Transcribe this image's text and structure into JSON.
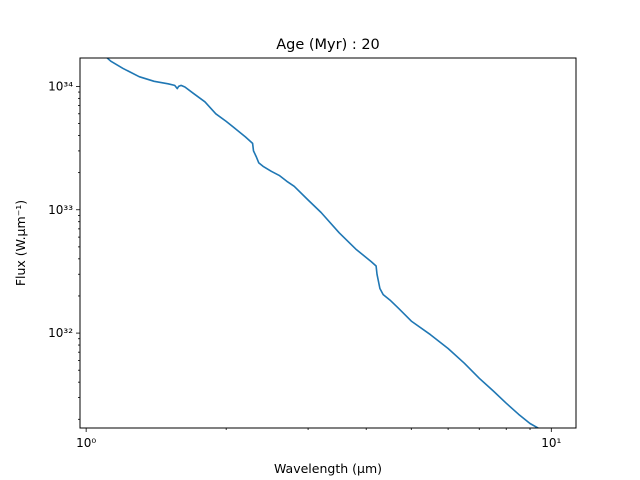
{
  "chart_data": {
    "type": "line",
    "title": "Age (Myr) : 20",
    "xlabel": "Wavelength (μm)",
    "ylabel": "Flux (W.μm⁻¹)",
    "xscale": "log",
    "yscale": "log",
    "xlim": [
      0.97,
      11.3
    ],
    "ylim": [
      1.7e+31,
      1.7e+34
    ],
    "x_ticks": [
      {
        "value": 1,
        "label": "10⁰"
      },
      {
        "value": 10,
        "label": "10¹"
      }
    ],
    "y_ticks": [
      {
        "value": 1e+32,
        "label": "10³²"
      },
      {
        "value": 1e+33,
        "label": "10³³"
      },
      {
        "value": 1e+34,
        "label": "10³⁴"
      }
    ],
    "grid": false,
    "line_color": "#1f77b4",
    "series": [
      {
        "x": [
          1.1,
          1.13,
          1.2,
          1.3,
          1.4,
          1.5,
          1.55,
          1.57,
          1.58,
          1.6,
          1.63,
          1.7,
          1.8,
          1.9,
          2.0,
          2.1,
          2.2,
          2.28,
          2.29,
          2.32,
          2.35,
          2.4,
          2.5,
          2.6,
          2.7,
          2.8,
          3.0,
          3.2,
          3.5,
          3.8,
          4.1,
          4.2,
          4.22,
          4.28,
          4.35,
          4.5,
          4.7,
          5.0,
          5.5,
          6.0,
          6.5,
          7.0,
          7.5,
          8.0,
          8.5,
          9.0,
          9.5
        ],
        "y": [
          1.75e+34,
          1.6e+34,
          1.4e+34,
          1.2e+34,
          1.1e+34,
          1.05e+34,
          1.02e+34,
          9.6e+33,
          1e+34,
          1.02e+34,
          9.9e+33,
          8.8e+33,
          7.5e+33,
          6e+33,
          5.2e+33,
          4.5e+33,
          3.9e+33,
          3.45e+33,
          3e+33,
          2.7e+33,
          2.4e+33,
          2.25e+33,
          2.05e+33,
          1.9e+33,
          1.7e+33,
          1.55e+33,
          1.2e+33,
          9.5e+32,
          6.5e+32,
          4.8e+32,
          3.8e+32,
          3.5e+32,
          3e+32,
          2.3e+32,
          2.05e+32,
          1.85e+32,
          1.58e+32,
          1.25e+32,
          9.7e+31,
          7.5e+31,
          5.7e+31,
          4.3e+31,
          3.4e+31,
          2.7e+31,
          2.2e+31,
          1.85e+31,
          1.65e+31
        ]
      }
    ]
  }
}
